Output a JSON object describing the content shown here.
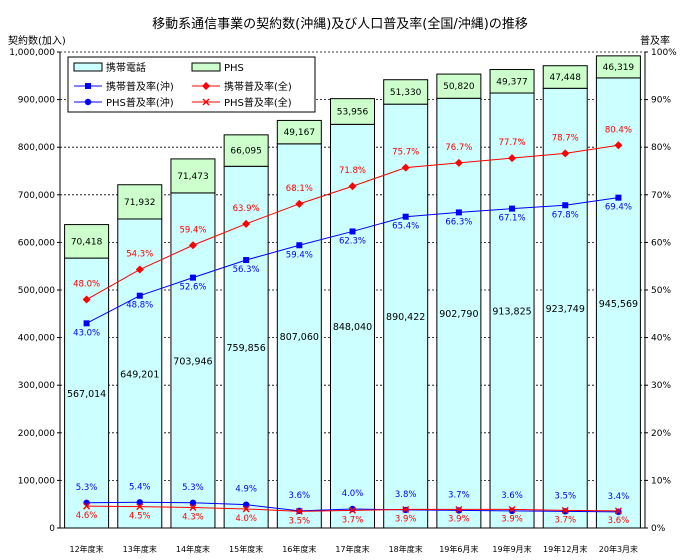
{
  "chart_data": {
    "type": "bar",
    "title": "移動系通信事業の契約数(沖縄)及び人口普及率(全国/沖縄)の推移",
    "ylabel": "契約数(加入)",
    "y2label": "普及率",
    "ylim": [
      0,
      1000000
    ],
    "y2lim": [
      0,
      100
    ],
    "yticks": [
      "0",
      "100,000",
      "200,000",
      "300,000",
      "400,000",
      "500,000",
      "600,000",
      "700,000",
      "800,000",
      "900,000",
      "1,000,000"
    ],
    "y2ticks": [
      "0%",
      "10%",
      "20%",
      "30%",
      "40%",
      "50%",
      "60%",
      "70%",
      "80%",
      "90%",
      "100%"
    ],
    "grid": true,
    "legend_position": "top-left",
    "categories": [
      "12年度末",
      "13年度末",
      "14年度末",
      "15年度末",
      "16年度末",
      "17年度末",
      "18年度末",
      "19年6月末",
      "19年9月末",
      "19年12月末",
      "20年3月末"
    ],
    "bars": [
      {
        "name": "携帯電話",
        "color": "#ccffff",
        "values": [
          567014,
          649201,
          703946,
          759856,
          807060,
          848040,
          890422,
          902790,
          913825,
          923749,
          945569
        ],
        "labels": [
          "567,014",
          "649,201",
          "703,946",
          "759,856",
          "807,060",
          "848,040",
          "890,422",
          "902,790",
          "913,825",
          "923,749",
          "945,569"
        ]
      },
      {
        "name": "PHS",
        "color": "#ccffcc",
        "values": [
          70418,
          71932,
          71473,
          66095,
          49167,
          53956,
          51330,
          50820,
          49377,
          47448,
          46319
        ],
        "labels": [
          "70,418",
          "71,932",
          "71,473",
          "66,095",
          "49,167",
          "53,956",
          "51,330",
          "50,820",
          "49,377",
          "47,448",
          "46,319"
        ]
      }
    ],
    "lines": [
      {
        "name": "携帯普及率(沖)",
        "color": "#0000ff",
        "marker": "square",
        "values": [
          43.0,
          48.8,
          52.6,
          56.3,
          59.4,
          62.3,
          65.4,
          66.3,
          67.1,
          67.8,
          69.4
        ],
        "labels": [
          "43.0%",
          "48.8%",
          "52.6%",
          "56.3%",
          "59.4%",
          "62.3%",
          "65.4%",
          "66.3%",
          "67.1%",
          "67.8%",
          "69.4%"
        ]
      },
      {
        "name": "携帯普及率(全)",
        "color": "#ff0000",
        "marker": "diamond",
        "values": [
          48.0,
          54.3,
          59.4,
          63.9,
          68.1,
          71.8,
          75.7,
          76.7,
          77.7,
          78.7,
          80.4
        ],
        "labels": [
          "48.0%",
          "54.3%",
          "59.4%",
          "63.9%",
          "68.1%",
          "71.8%",
          "75.7%",
          "76.7%",
          "77.7%",
          "78.7%",
          "80.4%"
        ]
      },
      {
        "name": "PHS普及率(沖)",
        "color": "#0000ff",
        "marker": "circle",
        "values": [
          5.3,
          5.4,
          5.3,
          4.9,
          3.6,
          4.0,
          3.8,
          3.7,
          3.6,
          3.5,
          3.4
        ],
        "labels": [
          "5.3%",
          "5.4%",
          "5.3%",
          "4.9%",
          "3.6%",
          "4.0%",
          "3.8%",
          "3.7%",
          "3.6%",
          "3.5%",
          "3.4%"
        ]
      },
      {
        "name": "PHS普及率(全)",
        "color": "#ff0000",
        "marker": "x",
        "values": [
          4.6,
          4.5,
          4.3,
          4.0,
          3.5,
          3.7,
          3.9,
          3.9,
          3.9,
          3.7,
          3.6
        ],
        "labels": [
          "4.6%",
          "4.5%",
          "4.3%",
          "4.0%",
          "3.5%",
          "3.7%",
          "3.9%",
          "3.9%",
          "3.9%",
          "3.7%",
          "3.6%"
        ]
      }
    ]
  }
}
